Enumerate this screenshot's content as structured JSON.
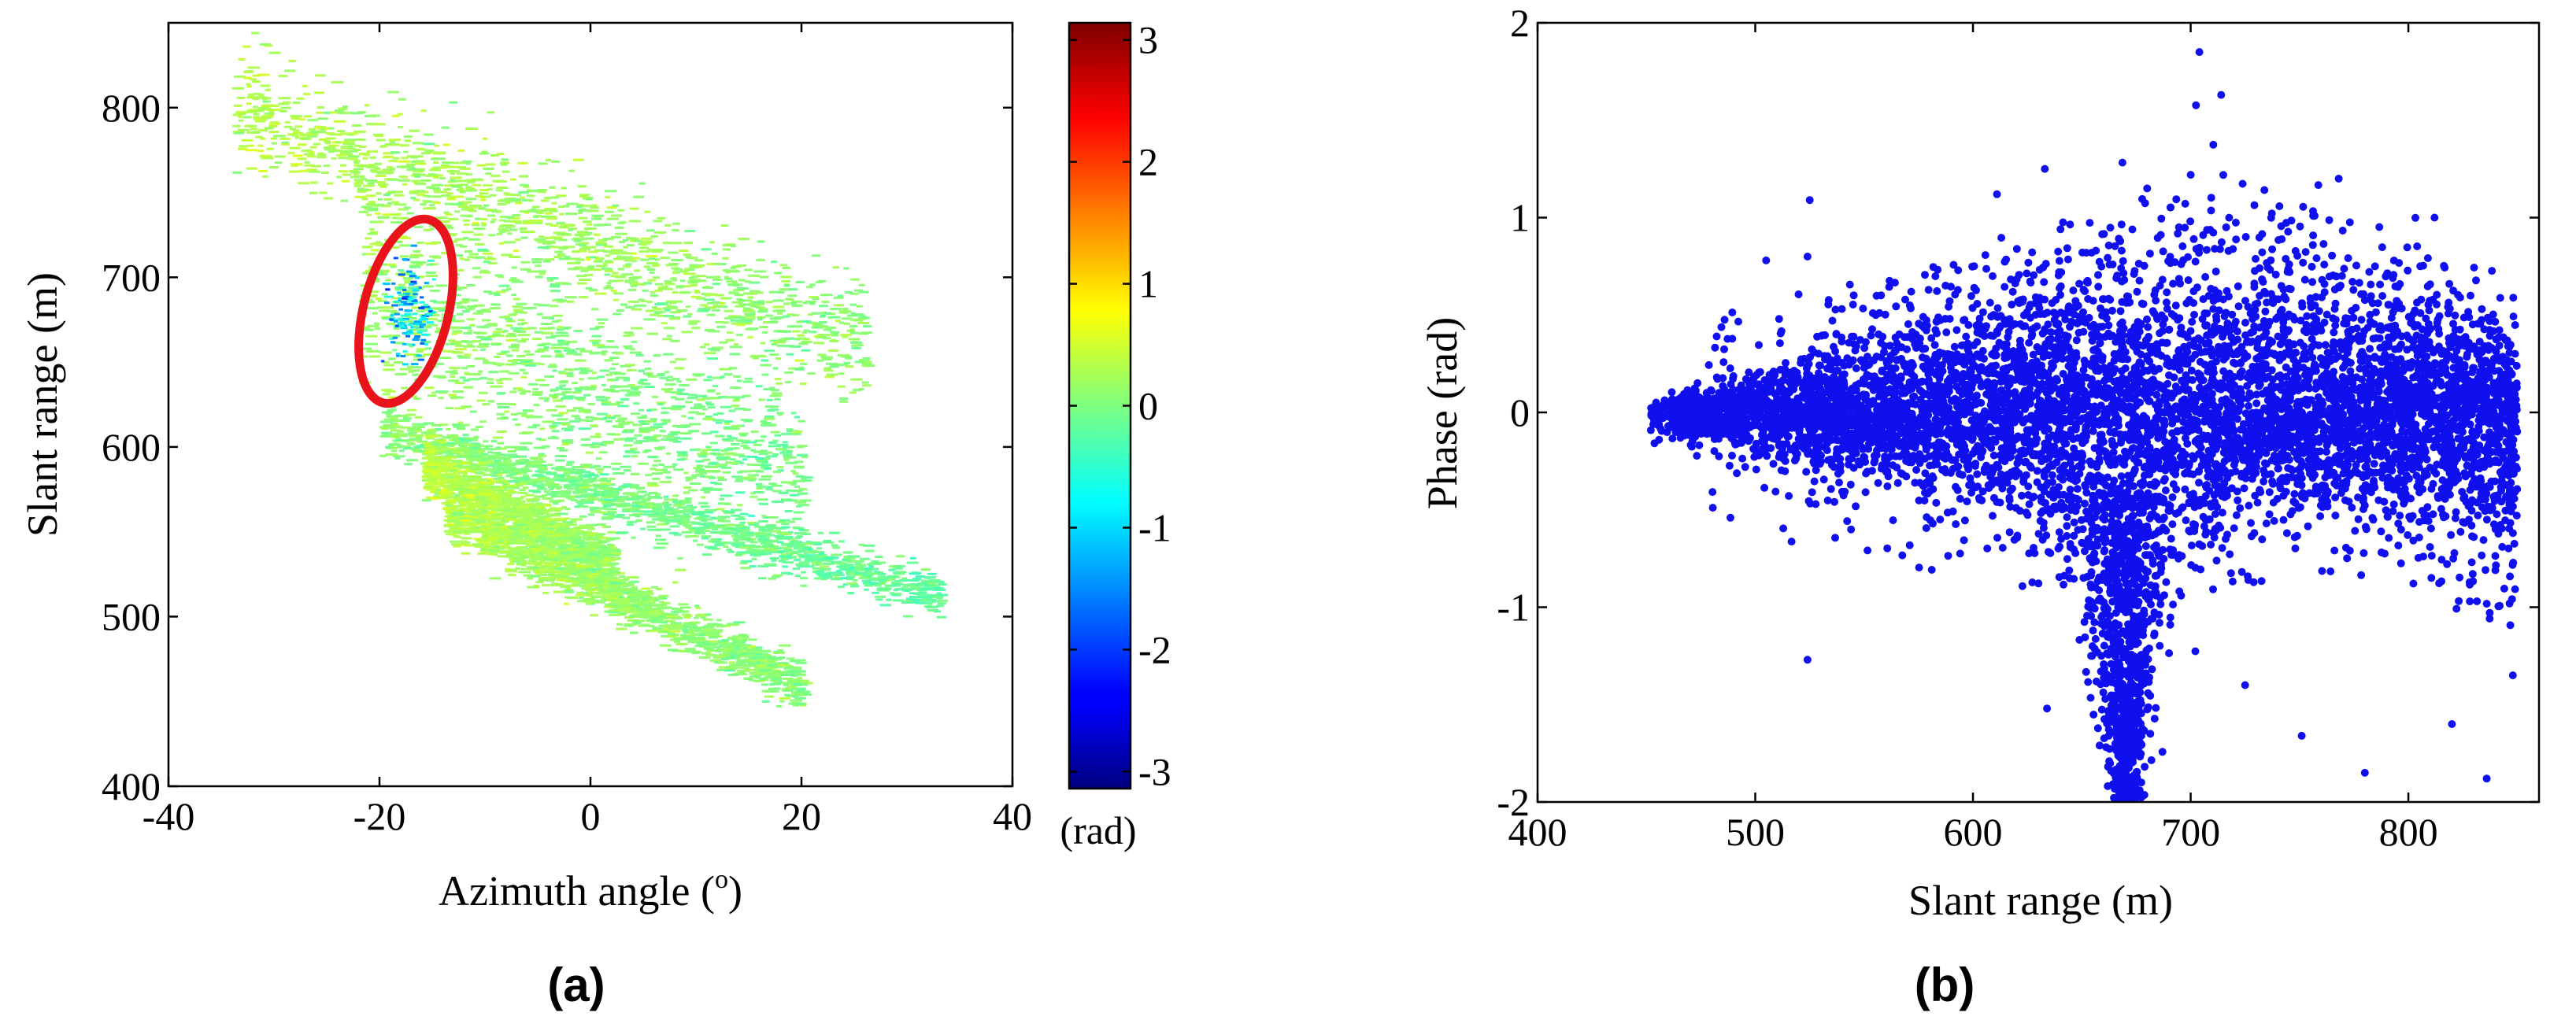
{
  "chart_data": [
    {
      "panel_label": "(a)",
      "type": "heatmap",
      "title": "",
      "xlabel": "Azimuth angle (",
      "xlabel_sup": "o",
      "xlabel_close": ")",
      "ylabel": "Slant range (m)",
      "xlim": [
        -40,
        40
      ],
      "ylim": [
        400,
        850
      ],
      "xticks": [
        -40,
        -20,
        0,
        20,
        40
      ],
      "xtick_labels": [
        "-40",
        "-20",
        "0",
        "20",
        "40"
      ],
      "yticks": [
        400,
        500,
        600,
        700,
        800
      ],
      "ytick_labels": [
        "400",
        "500",
        "600",
        "700",
        "800"
      ],
      "grid": false,
      "colorbar": {
        "range": [
          -3.14,
          3.14
        ],
        "ticks": [
          3,
          2,
          1,
          0,
          -1,
          -2,
          -3
        ],
        "tick_labels": [
          "3",
          "2",
          "1",
          "0",
          "-1",
          "-2",
          "-3"
        ],
        "unit_label": "(rad)",
        "colormap": "jet"
      },
      "bands": [
        {
          "az": [
            -34,
            26
          ],
          "range_at_start": 800,
          "range_at_end": 658,
          "halfwidth": 30,
          "phase": 0.2
        },
        {
          "az": [
            -22,
            20
          ],
          "range_at_start": 695,
          "range_at_end": 578,
          "halfwidth": 52,
          "phase": 0.05
        },
        {
          "az": [
            -20,
            33
          ],
          "range_at_start": 612,
          "range_at_end": 512,
          "halfwidth": 12,
          "phase": -0.05
        },
        {
          "az": [
            -14,
            20
          ],
          "range_at_start": 560,
          "range_at_end": 460,
          "halfwidth": 12,
          "phase": 0.15
        },
        {
          "az": [
            -16,
            2
          ],
          "range_at_start": 588,
          "range_at_end": 530,
          "halfwidth": 15,
          "phase": 0.25
        }
      ],
      "anomaly": {
        "az_center": -17.5,
        "range_center": 680,
        "phase": -1.1
      },
      "annotation": {
        "shape": "ellipse",
        "color": "#e8131b",
        "az_center": -17.5,
        "range_center": 680,
        "note": "anomalous phase region"
      }
    },
    {
      "panel_label": "(b)",
      "type": "scatter",
      "title": "",
      "xlabel": "Slant range (m)",
      "ylabel": "Phase (rad)",
      "xlim": [
        400,
        860
      ],
      "ylim": [
        -2,
        2
      ],
      "xticks": [
        400,
        500,
        600,
        700,
        800
      ],
      "xtick_labels": [
        "400",
        "500",
        "600",
        "700",
        "800"
      ],
      "yticks": [
        2,
        1,
        0,
        -1,
        -2
      ],
      "ytick_labels": [
        "2",
        "1",
        "0",
        "-1",
        "-2"
      ],
      "grid": false,
      "marker_color": "#1010ee",
      "x_extent": [
        452,
        850
      ],
      "spread_profile": [
        {
          "x": 452,
          "upper": 0.05,
          "lower": -0.1
        },
        {
          "x": 500,
          "upper": 0.2,
          "lower": -0.2
        },
        {
          "x": 550,
          "upper": 0.35,
          "lower": -0.3
        },
        {
          "x": 600,
          "upper": 0.5,
          "lower": -0.4
        },
        {
          "x": 650,
          "upper": 0.65,
          "lower": -0.6
        },
        {
          "x": 700,
          "upper": 0.8,
          "lower": -0.6
        },
        {
          "x": 740,
          "upper": 0.8,
          "lower": -0.4
        },
        {
          "x": 800,
          "upper": 0.55,
          "lower": -0.45
        },
        {
          "x": 850,
          "upper": 0.35,
          "lower": -0.75
        }
      ],
      "tail": {
        "x_range": [
          650,
          700
        ],
        "center": 670,
        "min_phase": -2.0
      },
      "outliers": [
        {
          "x": 704,
          "y": 1.85
        },
        {
          "x": 714,
          "y": 1.63
        },
        {
          "x": 700,
          "y": 1.22
        },
        {
          "x": 633,
          "y": 1.25
        },
        {
          "x": 525,
          "y": 1.09
        },
        {
          "x": 524,
          "y": 0.8
        },
        {
          "x": 505,
          "y": 0.78
        },
        {
          "x": 611,
          "y": 1.12
        },
        {
          "x": 680,
          "y": 1.15
        },
        {
          "x": 768,
          "y": 1.2
        },
        {
          "x": 812,
          "y": 1.0
        },
        {
          "x": 524,
          "y": -1.27
        },
        {
          "x": 780,
          "y": -1.85
        },
        {
          "x": 836,
          "y": -1.88
        },
        {
          "x": 820,
          "y": -1.6
        },
        {
          "x": 848,
          "y": -1.35
        },
        {
          "x": 634,
          "y": -1.52
        },
        {
          "x": 725,
          "y": -1.4
        },
        {
          "x": 751,
          "y": -1.66
        }
      ]
    }
  ]
}
